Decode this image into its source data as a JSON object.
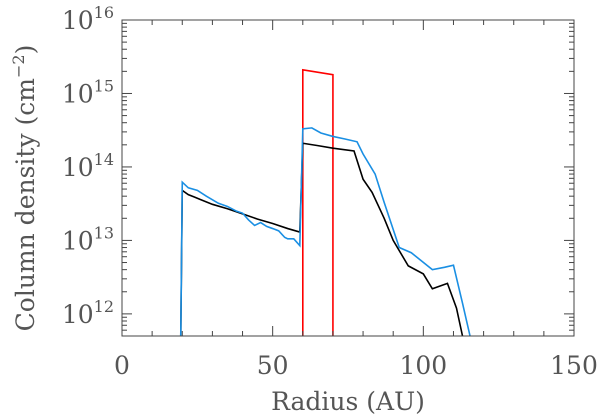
{
  "chart_data": {
    "type": "line",
    "xlabel": "Radius (AU)",
    "ylabel": {
      "prefix": "Column density (cm",
      "exponent": "−2",
      "suffix": ")"
    },
    "xlim": [
      0,
      150
    ],
    "ylim": [
      500000000000.0,
      1e+16
    ],
    "yscale": "log",
    "grid": false,
    "x_ticks": [
      0,
      50,
      100,
      150
    ],
    "x_tick_labels": [
      "0",
      "50",
      "100",
      "150"
    ],
    "y_ticks": [
      {
        "value": 1000000000000.0,
        "base": "10",
        "exp": "12"
      },
      {
        "value": 10000000000000.0,
        "base": "10",
        "exp": "13"
      },
      {
        "value": 100000000000000.0,
        "base": "10",
        "exp": "14"
      },
      {
        "value": 1000000000000000.0,
        "base": "10",
        "exp": "15"
      },
      {
        "value": 1e+16,
        "base": "10",
        "exp": "16"
      }
    ],
    "series": [
      {
        "color": "#ff0000",
        "points": [
          [
            60,
            500000000000.0
          ],
          [
            60,
            2100000000000000.0
          ],
          [
            70,
            1800000000000000.0
          ],
          [
            70,
            500000000000.0
          ]
        ]
      },
      {
        "color": "#000000",
        "points": [
          [
            19.5,
            500000000000.0
          ],
          [
            20,
            48000000000000.0
          ],
          [
            22,
            42000000000000.0
          ],
          [
            24,
            39000000000000.0
          ],
          [
            26,
            36000000000000.0
          ],
          [
            30,
            31000000000000.0
          ],
          [
            35,
            27000000000000.0
          ],
          [
            40,
            23000000000000.0
          ],
          [
            45,
            19500000000000.0
          ],
          [
            50,
            17000000000000.0
          ],
          [
            55,
            14500000000000.0
          ],
          [
            59,
            13000000000000.0
          ],
          [
            60,
            210000000000000.0
          ],
          [
            65,
            195000000000000.0
          ],
          [
            70,
            180000000000000.0
          ],
          [
            77,
            165000000000000.0
          ],
          [
            80,
            68000000000000.0
          ],
          [
            83,
            45000000000000.0
          ],
          [
            87,
            20000000000000.0
          ],
          [
            90,
            10000000000000.0
          ],
          [
            95,
            4500000000000.0
          ],
          [
            100,
            3500000000000.0
          ],
          [
            103,
            2200000000000.0
          ],
          [
            108,
            2600000000000.0
          ],
          [
            111,
            1200000000000.0
          ],
          [
            113,
            500000000000.0
          ]
        ]
      },
      {
        "color": "#1a8fe3",
        "points": [
          [
            19.5,
            500000000000.0
          ],
          [
            20,
            62000000000000.0
          ],
          [
            22,
            52000000000000.0
          ],
          [
            25,
            48000000000000.0
          ],
          [
            28,
            40000000000000.0
          ],
          [
            32,
            32000000000000.0
          ],
          [
            35,
            29000000000000.0
          ],
          [
            38,
            25000000000000.0
          ],
          [
            40,
            23500000000000.0
          ],
          [
            42,
            19000000000000.0
          ],
          [
            44,
            16000000000000.0
          ],
          [
            46,
            17500000000000.0
          ],
          [
            48,
            15500000000000.0
          ],
          [
            50,
            14500000000000.0
          ],
          [
            52,
            13500000000000.0
          ],
          [
            54,
            11000000000000.0
          ],
          [
            55,
            10500000000000.0
          ],
          [
            57,
            10500000000000.0
          ],
          [
            59,
            8500000000000.0
          ],
          [
            60,
            330000000000000.0
          ],
          [
            63,
            340000000000000.0
          ],
          [
            66,
            290000000000000.0
          ],
          [
            70,
            260000000000000.0
          ],
          [
            74,
            240000000000000.0
          ],
          [
            78,
            220000000000000.0
          ],
          [
            80,
            150000000000000.0
          ],
          [
            84,
            80000000000000.0
          ],
          [
            87,
            33000000000000.0
          ],
          [
            92,
            8000000000000.0
          ],
          [
            96,
            6800000000000.0
          ],
          [
            103,
            4000000000000.0
          ],
          [
            107,
            4300000000000.0
          ],
          [
            110,
            4600000000000.0
          ],
          [
            113,
            1400000000000.0
          ],
          [
            115.5,
            500000000000.0
          ]
        ]
      }
    ]
  }
}
